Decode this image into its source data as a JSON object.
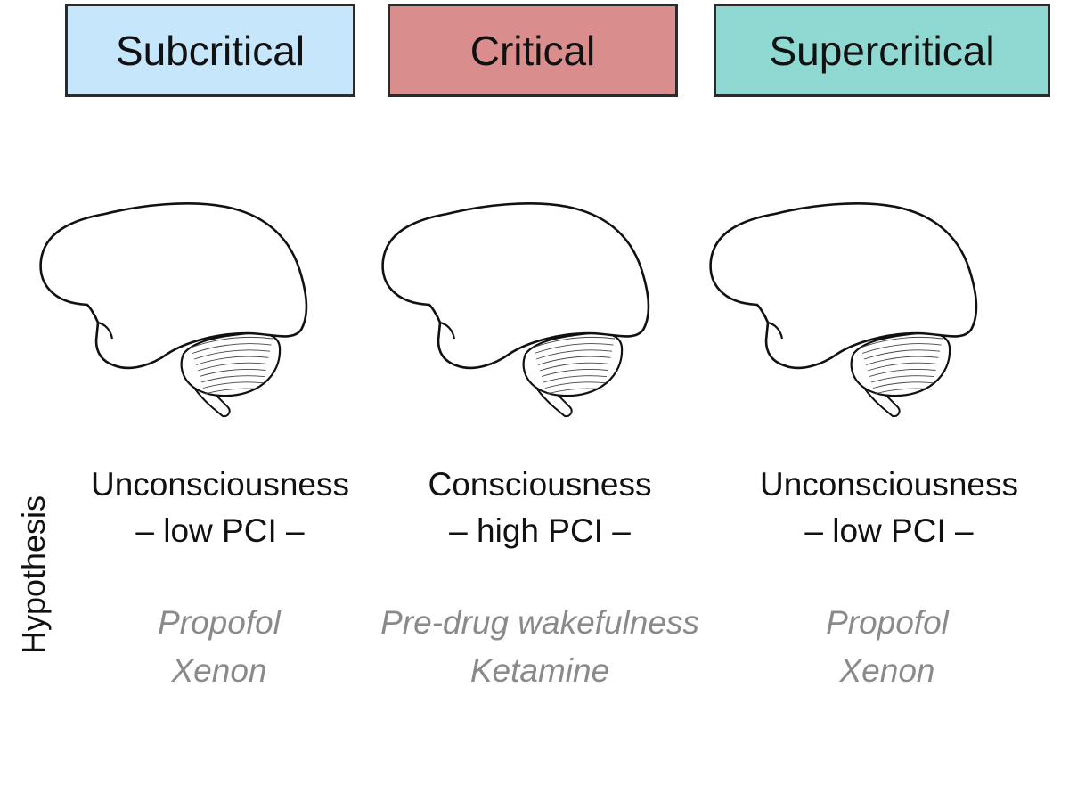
{
  "columns": [
    {
      "header": "Subcritical",
      "header_color": "#c5e6fb",
      "state": "Unconsciousness",
      "pci": "– low PCI –",
      "drugs": [
        "Propofol",
        "Xenon"
      ]
    },
    {
      "header": "Critical",
      "header_color": "#d98d8d",
      "state": "Consciousness",
      "pci": "– high PCI –",
      "drugs": [
        "Pre-drug wakefulness",
        "Ketamine"
      ]
    },
    {
      "header": "Supercritical",
      "header_color": "#8fd9d2",
      "state": "Unconsciousness",
      "pci": "– low PCI –",
      "drugs": [
        "Propofol",
        "Xenon"
      ]
    }
  ],
  "side_label": "Hypothesis",
  "icon": "brain-icon"
}
